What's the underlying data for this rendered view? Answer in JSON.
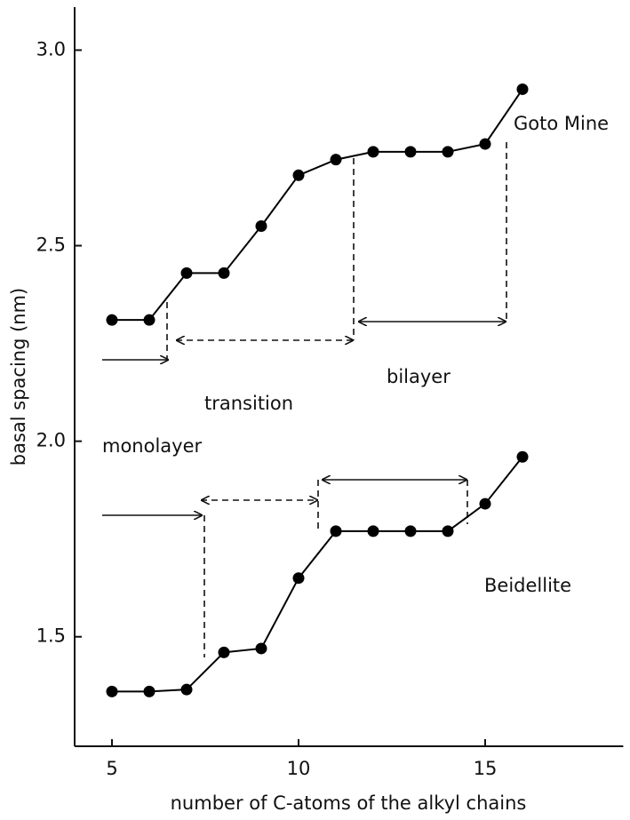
{
  "chart_data": {
    "type": "line",
    "x_label": "number of C-atoms of the alkyl chains",
    "y_label": "basal spacing (nm)",
    "x": [
      5,
      6,
      7,
      8,
      9,
      10,
      11,
      12,
      13,
      14,
      15,
      16
    ],
    "series": [
      {
        "name": "Goto Mine",
        "color": "#000000",
        "values": [
          2.31,
          2.31,
          2.43,
          2.43,
          2.55,
          2.68,
          2.72,
          2.74,
          2.74,
          2.74,
          2.76,
          2.9
        ]
      },
      {
        "name": "Beidellite",
        "color": "#000000",
        "values": [
          1.36,
          1.36,
          1.365,
          1.46,
          1.47,
          1.65,
          1.77,
          1.77,
          1.77,
          1.77,
          1.84,
          1.96
        ]
      }
    ],
    "annotations": [
      "monolayer",
      "transition",
      "bilayer"
    ],
    "xlim": [
      4,
      18.7
    ],
    "xticks": [
      5,
      10,
      15
    ],
    "ylim": [
      1.22,
      3.11
    ],
    "yticks": [
      1.5,
      {
        "value": 2.0,
        "label": "2.0"
      },
      2.5,
      {
        "value": 3.0,
        "label": "3.0"
      }
    ]
  }
}
